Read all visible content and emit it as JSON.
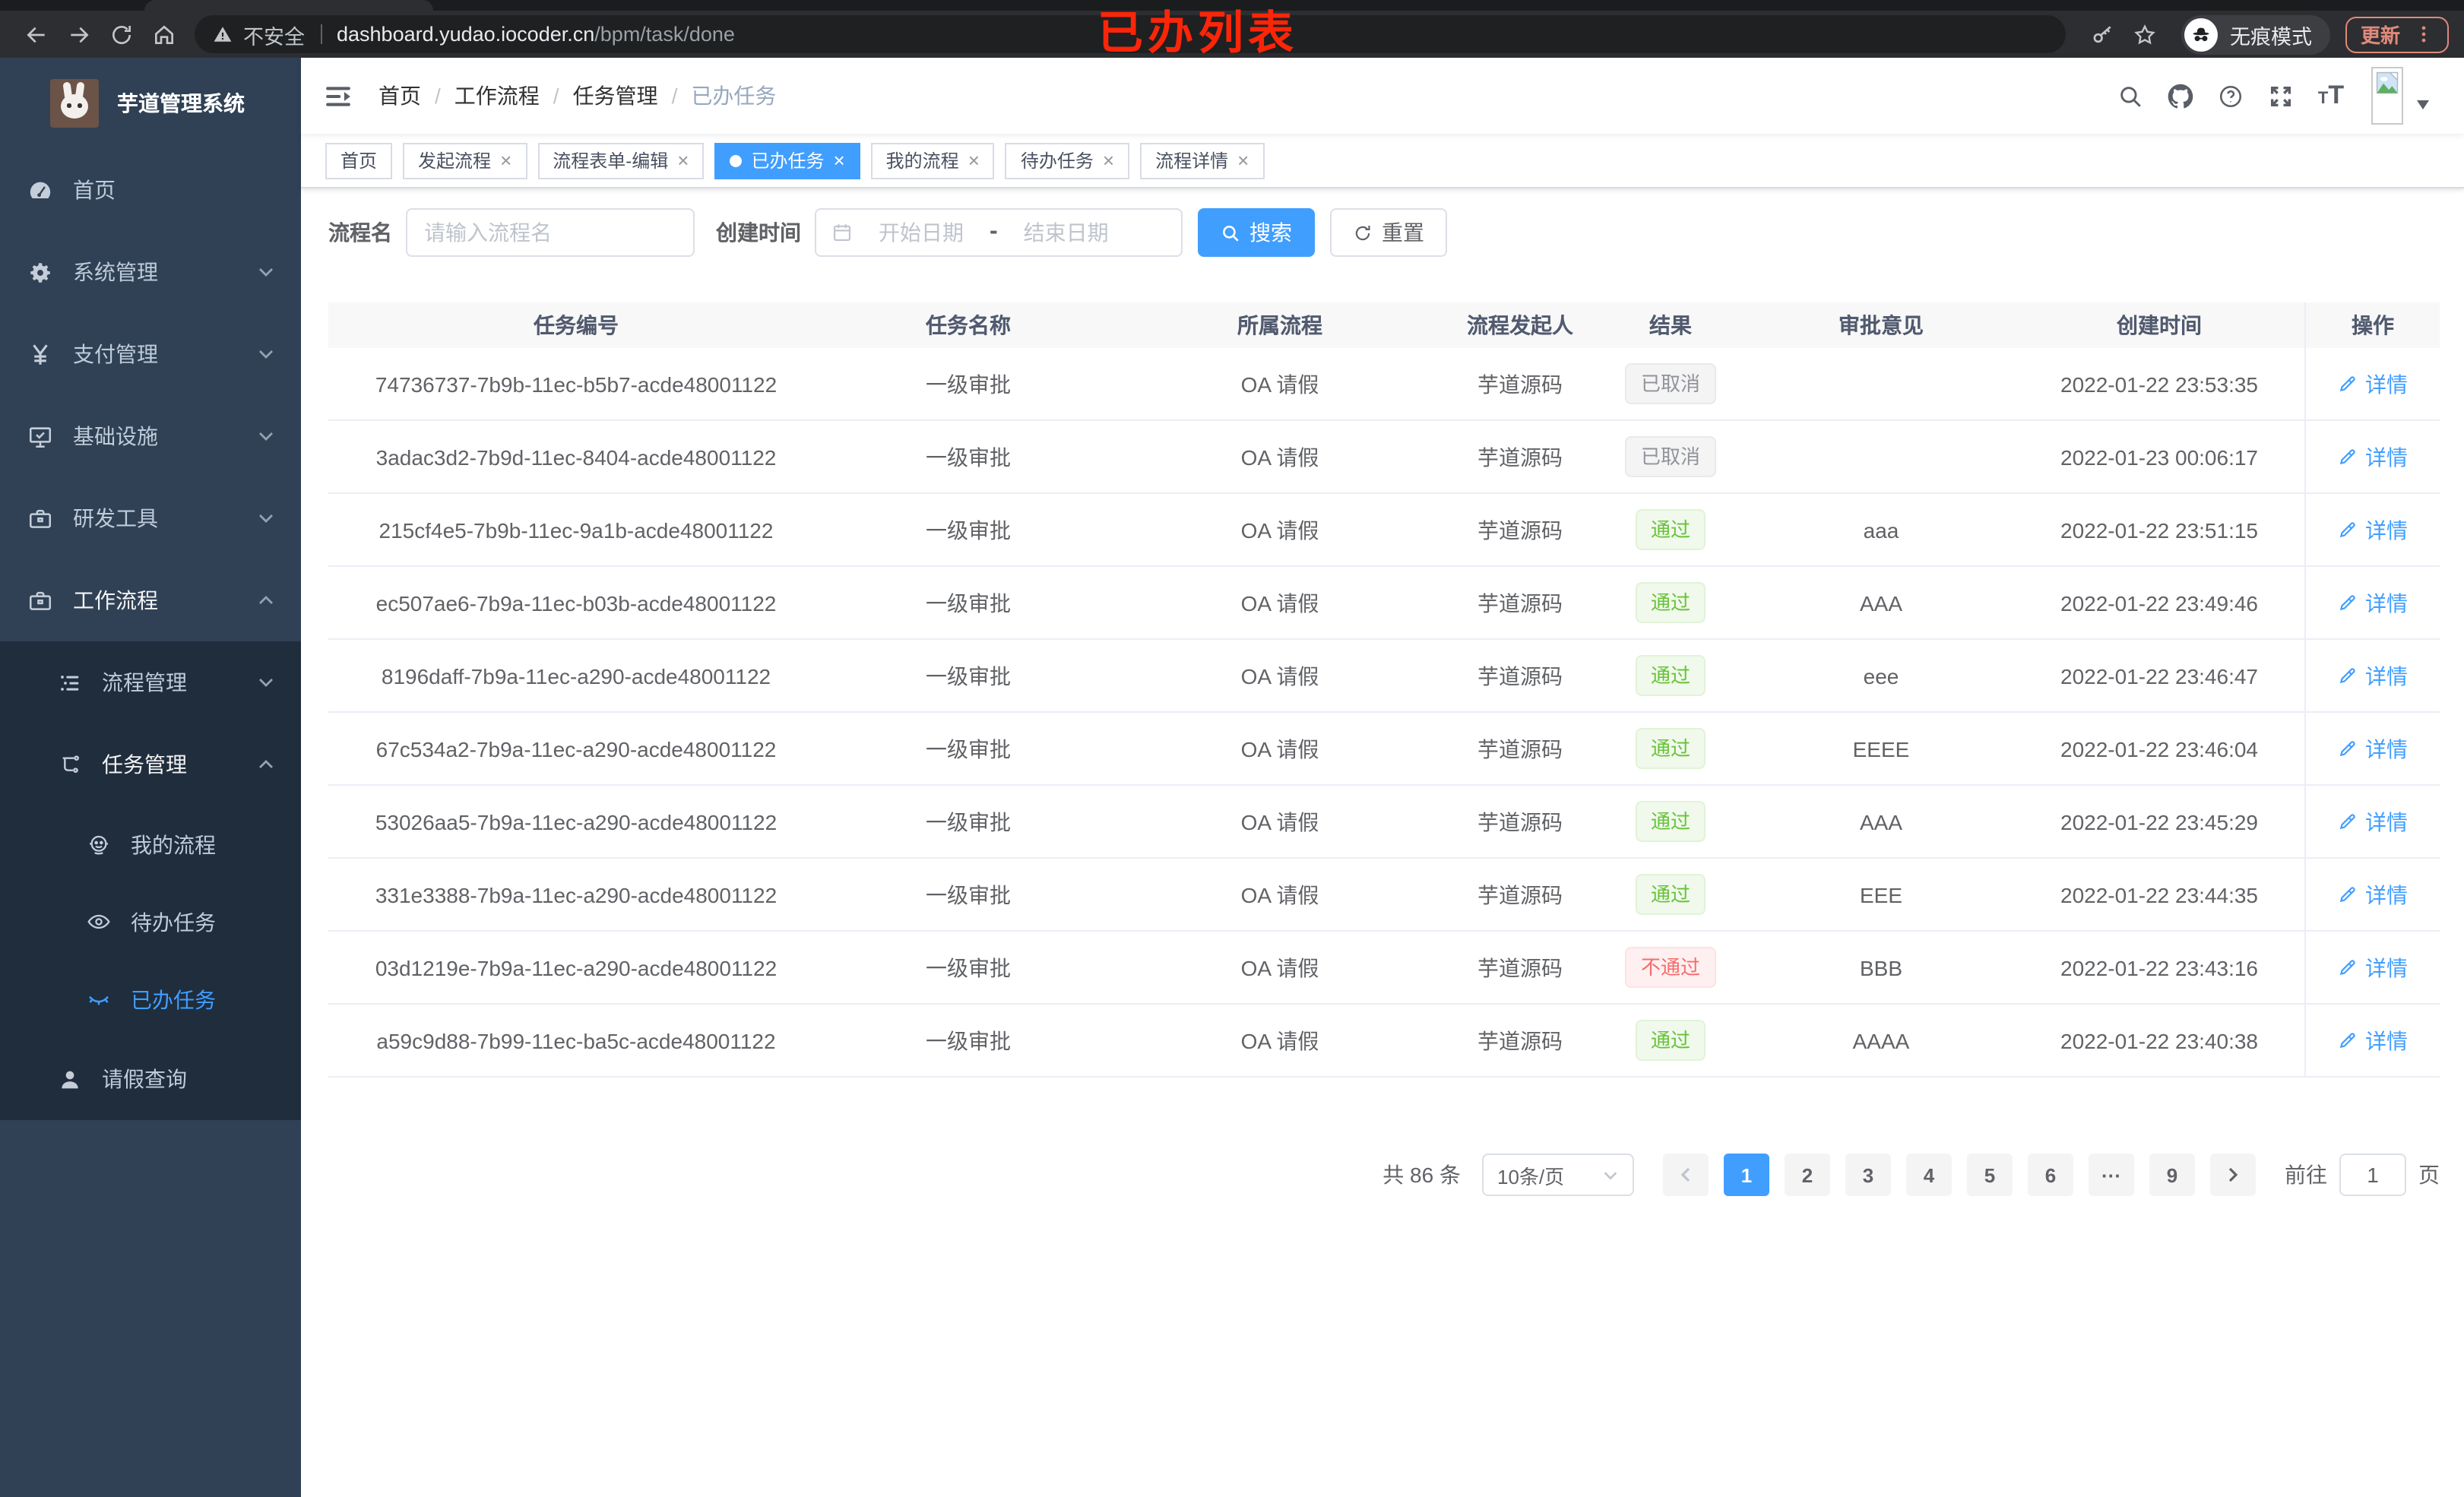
{
  "browser": {
    "security_label": "不安全",
    "url_host": "dashboard.yudao.iocoder.cn",
    "url_path": "/bpm/task/done",
    "overlay_title": "已办列表",
    "incognito_label": "无痕模式",
    "update_label": "更新"
  },
  "sidebar": {
    "app_title": "芋道管理系统",
    "menu": [
      {
        "label": "首页",
        "icon": "dashboard-icon",
        "level": 1
      },
      {
        "label": "系统管理",
        "icon": "gear-icon",
        "level": 1,
        "chevron": "down"
      },
      {
        "label": "支付管理",
        "icon": "yen-icon",
        "level": 1,
        "chevron": "down"
      },
      {
        "label": "基础设施",
        "icon": "monitor-icon",
        "level": 1,
        "chevron": "down"
      },
      {
        "label": "研发工具",
        "icon": "toolbox-icon",
        "level": 1,
        "chevron": "down"
      },
      {
        "label": "工作流程",
        "icon": "briefcase-icon",
        "level": 1,
        "chevron": "up",
        "expanded": true
      },
      {
        "label": "流程管理",
        "icon": "list-icon",
        "level": 2,
        "chevron": "down",
        "in_submenu": true
      },
      {
        "label": "任务管理",
        "icon": "tree-icon",
        "level": 2,
        "chevron": "up",
        "expanded": true,
        "in_submenu": true
      },
      {
        "label": "我的流程",
        "icon": "robot-icon",
        "level": 3,
        "in_submenu": true
      },
      {
        "label": "待办任务",
        "icon": "eye-icon",
        "level": 3,
        "in_submenu": true
      },
      {
        "label": "已办任务",
        "icon": "eye-closed-icon",
        "level": 3,
        "in_submenu": true,
        "active": true
      },
      {
        "label": "请假查询",
        "icon": "user-icon",
        "level": 2,
        "in_submenu": true
      }
    ]
  },
  "navbar": {
    "breadcrumb": [
      {
        "label": "首页"
      },
      {
        "label": "工作流程"
      },
      {
        "label": "任务管理"
      },
      {
        "label": "已办任务",
        "current": true
      }
    ]
  },
  "tabs": [
    {
      "label": "首页",
      "closable": false
    },
    {
      "label": "发起流程",
      "closable": true
    },
    {
      "label": "流程表单-编辑",
      "closable": true
    },
    {
      "label": "已办任务",
      "closable": true,
      "active": true
    },
    {
      "label": "我的流程",
      "closable": true
    },
    {
      "label": "待办任务",
      "closable": true
    },
    {
      "label": "流程详情",
      "closable": true
    }
  ],
  "filters": {
    "name_label": "流程名",
    "name_placeholder": "请输入流程名",
    "time_label": "创建时间",
    "start_placeholder": "开始日期",
    "range_separator": "-",
    "end_placeholder": "结束日期",
    "search_label": "搜索",
    "reset_label": "重置"
  },
  "table": {
    "columns": [
      "任务编号",
      "任务名称",
      "所属流程",
      "流程发起人",
      "结果",
      "审批意见",
      "创建时间",
      "操作"
    ],
    "action_label": "详情",
    "rows": [
      {
        "id": "74736737-7b9b-11ec-b5b7-acde48001122",
        "name": "一级审批",
        "process": "OA 请假",
        "starter": "芋道源码",
        "result": "已取消",
        "result_type": "info",
        "comment": "",
        "time": "2022-01-22 23:53:35"
      },
      {
        "id": "3adac3d2-7b9d-11ec-8404-acde48001122",
        "name": "一级审批",
        "process": "OA 请假",
        "starter": "芋道源码",
        "result": "已取消",
        "result_type": "info",
        "comment": "",
        "time": "2022-01-23 00:06:17"
      },
      {
        "id": "215cf4e5-7b9b-11ec-9a1b-acde48001122",
        "name": "一级审批",
        "process": "OA 请假",
        "starter": "芋道源码",
        "result": "通过",
        "result_type": "success",
        "comment": "aaa",
        "time": "2022-01-22 23:51:15"
      },
      {
        "id": "ec507ae6-7b9a-11ec-b03b-acde48001122",
        "name": "一级审批",
        "process": "OA 请假",
        "starter": "芋道源码",
        "result": "通过",
        "result_type": "success",
        "comment": "AAA",
        "time": "2022-01-22 23:49:46"
      },
      {
        "id": "8196daff-7b9a-11ec-a290-acde48001122",
        "name": "一级审批",
        "process": "OA 请假",
        "starter": "芋道源码",
        "result": "通过",
        "result_type": "success",
        "comment": "eee",
        "time": "2022-01-22 23:46:47"
      },
      {
        "id": "67c534a2-7b9a-11ec-a290-acde48001122",
        "name": "一级审批",
        "process": "OA 请假",
        "starter": "芋道源码",
        "result": "通过",
        "result_type": "success",
        "comment": "EEEE",
        "time": "2022-01-22 23:46:04"
      },
      {
        "id": "53026aa5-7b9a-11ec-a290-acde48001122",
        "name": "一级审批",
        "process": "OA 请假",
        "starter": "芋道源码",
        "result": "通过",
        "result_type": "success",
        "comment": "AAA",
        "time": "2022-01-22 23:45:29"
      },
      {
        "id": "331e3388-7b9a-11ec-a290-acde48001122",
        "name": "一级审批",
        "process": "OA 请假",
        "starter": "芋道源码",
        "result": "通过",
        "result_type": "success",
        "comment": "EEE",
        "time": "2022-01-22 23:44:35"
      },
      {
        "id": "03d1219e-7b9a-11ec-a290-acde48001122",
        "name": "一级审批",
        "process": "OA 请假",
        "starter": "芋道源码",
        "result": "不通过",
        "result_type": "danger",
        "comment": "BBB",
        "time": "2022-01-22 23:43:16"
      },
      {
        "id": "a59c9d88-7b99-11ec-ba5c-acde48001122",
        "name": "一级审批",
        "process": "OA 请假",
        "starter": "芋道源码",
        "result": "通过",
        "result_type": "success",
        "comment": "AAAA",
        "time": "2022-01-22 23:40:38"
      }
    ]
  },
  "pagination": {
    "total_label": "共 86 条",
    "page_size_label": "10条/页",
    "pages": [
      "1",
      "2",
      "3",
      "4",
      "5",
      "6",
      "···",
      "9"
    ],
    "active_page": "1",
    "goto_label": "前往",
    "goto_value": "1",
    "goto_unit": "页"
  },
  "colors": {
    "accent": "#409eff",
    "success": "#67c23a",
    "danger": "#f56c6c",
    "info": "#909399",
    "sidebar_bg": "#304156",
    "submenu_bg": "#1f2d3d",
    "overlay_red": "#fb2508",
    "update_coral": "#e0897a"
  }
}
